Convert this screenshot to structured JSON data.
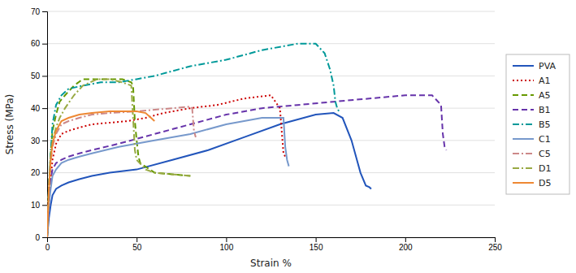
{
  "chart_data": {
    "type": "line",
    "xlabel": "Strain %",
    "ylabel": "Stress (MPa)",
    "xlim": [
      0,
      250
    ],
    "ylim": [
      0,
      70
    ],
    "xticks": [
      0,
      50,
      100,
      150,
      200,
      250
    ],
    "yticks": [
      0,
      10,
      20,
      30,
      40,
      50,
      60,
      70
    ],
    "grid": true,
    "legend": "right",
    "series": [
      {
        "name": "PVA",
        "color": "#2255bb",
        "line_style": "solid",
        "x": [
          0,
          0.5,
          1,
          2,
          3,
          5,
          8,
          12,
          18,
          25,
          35,
          50,
          70,
          90,
          110,
          130,
          150,
          160,
          165,
          170,
          175,
          178,
          180,
          181
        ],
        "values": [
          0,
          3,
          6,
          10,
          13,
          15,
          16,
          17,
          18,
          19,
          20,
          21,
          24,
          27,
          31,
          35,
          38,
          38.5,
          37,
          30,
          20,
          16,
          15.5,
          15
        ]
      },
      {
        "name": "A1",
        "color": "#cc0000",
        "line_style": "dotted",
        "x": [
          0,
          0.5,
          1,
          2,
          3,
          5,
          8,
          12,
          18,
          25,
          35,
          45,
          55,
          65,
          80,
          95,
          110,
          125,
          130,
          131,
          132,
          133
        ],
        "values": [
          0,
          5,
          10,
          18,
          24,
          29,
          32,
          33,
          34,
          35,
          35.5,
          36,
          37,
          38.5,
          40,
          41,
          43,
          44,
          40,
          33,
          26,
          25
        ]
      },
      {
        "name": "A5",
        "color": "#669900",
        "line_style": "dashed",
        "x": [
          0,
          0.5,
          1,
          2,
          3,
          5,
          7,
          10,
          15,
          20,
          28,
          35,
          42,
          47,
          48,
          49,
          50,
          51,
          52,
          60,
          80
        ],
        "values": [
          0,
          8,
          16,
          26,
          33,
          38,
          42,
          44,
          47,
          49,
          49,
          49,
          49,
          48,
          47,
          36,
          30,
          25,
          23,
          20,
          19
        ]
      },
      {
        "name": "B1",
        "color": "#6633aa",
        "line_style": "dashed",
        "x": [
          0,
          0.5,
          1,
          2,
          3,
          5,
          8,
          12,
          18,
          25,
          40,
          60,
          80,
          100,
          120,
          140,
          160,
          180,
          200,
          215,
          220,
          221,
          222,
          223
        ],
        "values": [
          0,
          6,
          12,
          18,
          21,
          23,
          24,
          25,
          26,
          27,
          29,
          32,
          35,
          38,
          40,
          41,
          42,
          43,
          44,
          44,
          41,
          32,
          28,
          27
        ]
      },
      {
        "name": "B5",
        "color": "#009999",
        "line_style": "dashdot",
        "x": [
          0,
          0.5,
          1,
          2,
          3,
          5,
          8,
          12,
          20,
          30,
          40,
          50,
          60,
          80,
          100,
          120,
          130,
          140,
          150,
          155,
          158,
          160,
          161,
          162,
          163
        ],
        "values": [
          0,
          8,
          16,
          26,
          35,
          41,
          44,
          46,
          47,
          48,
          48,
          49,
          50,
          53,
          55,
          58,
          59,
          60,
          60,
          57,
          52,
          47,
          42,
          40,
          39
        ]
      },
      {
        "name": "C1",
        "color": "#7799cc",
        "line_style": "solid",
        "x": [
          0,
          0.5,
          1,
          2,
          3,
          5,
          8,
          12,
          18,
          25,
          40,
          60,
          80,
          100,
          120,
          130,
          132,
          133,
          134,
          135
        ],
        "values": [
          0,
          5,
          10,
          15,
          19,
          21,
          23,
          24,
          25,
          26,
          28,
          30,
          32,
          35,
          37,
          37,
          37,
          28,
          24,
          22
        ]
      },
      {
        "name": "C5",
        "color": "#cc8888",
        "line_style": "dashdot",
        "x": [
          0,
          0.5,
          1,
          2,
          3,
          5,
          8,
          12,
          18,
          25,
          35,
          50,
          70,
          80,
          81,
          82,
          83
        ],
        "values": [
          0,
          8,
          15,
          23,
          28,
          32,
          35,
          36,
          37,
          38,
          38.5,
          39,
          40,
          40.5,
          40,
          33,
          31
        ]
      },
      {
        "name": "D1",
        "color": "#99aa44",
        "line_style": "dashdot",
        "x": [
          0,
          0.5,
          1,
          2,
          3,
          5,
          7,
          10,
          15,
          20,
          28,
          35,
          42,
          47,
          48,
          49,
          50,
          55,
          60,
          80
        ],
        "values": [
          0,
          8,
          16,
          25,
          30,
          34,
          37,
          40,
          44,
          47,
          49,
          49,
          48,
          47,
          37,
          27,
          24,
          21,
          20,
          19
        ]
      },
      {
        "name": "D5",
        "color": "#ee8833",
        "line_style": "solid",
        "x": [
          0,
          0.5,
          1,
          2,
          3,
          5,
          8,
          12,
          18,
          25,
          35,
          50,
          55,
          58,
          60
        ],
        "values": [
          0,
          8,
          15,
          24,
          29,
          33,
          36,
          37,
          38,
          38.5,
          39,
          39,
          38.5,
          37,
          36
        ]
      }
    ]
  }
}
